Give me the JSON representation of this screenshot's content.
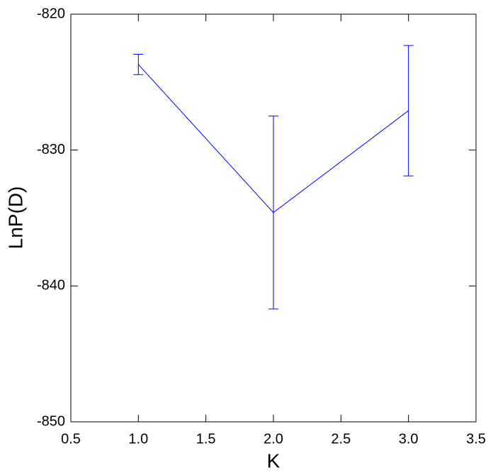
{
  "chart_data": {
    "type": "line",
    "x_label": "K",
    "y_label": "LnP(D)",
    "x": [
      1,
      2,
      3
    ],
    "series": [
      {
        "color": "#0000ff",
        "values": [
          -823.7,
          -834.6,
          -827.1
        ],
        "errors": [
          0.75,
          7.1,
          4.8
        ]
      }
    ],
    "xlim": [
      0.5,
      3.5
    ],
    "xticks": [
      0.5,
      {
        "value": 1,
        "label": "1.0"
      },
      1.5,
      {
        "value": 2,
        "label": "2.0"
      },
      2.5,
      {
        "value": 3,
        "label": "3.0"
      },
      3.5
    ],
    "ylim": [
      -850,
      -820
    ],
    "yticks": [
      -850,
      -840,
      -830,
      -820
    ]
  }
}
